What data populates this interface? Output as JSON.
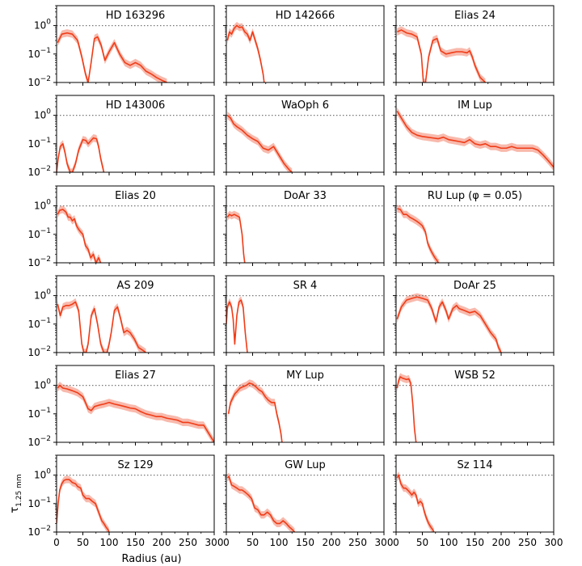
{
  "chart_data": {
    "type": "line",
    "layout": "grid-6x3",
    "xlabel": "Radius (au)",
    "ylabel": "τ_1.25 mm",
    "ylabel_main": "τ",
    "ylabel_sub": "1.25 mm",
    "xlim": [
      0,
      300
    ],
    "ylim": [
      0.01,
      5
    ],
    "yscale": "log",
    "xticks": [
      0,
      50,
      100,
      150,
      200,
      250,
      300
    ],
    "yticks": [
      {
        "value": 0.01,
        "base": "10",
        "exp": "−2"
      },
      {
        "value": 0.1,
        "base": "10",
        "exp": "−1"
      },
      {
        "value": 1,
        "base": "10",
        "exp": "0"
      }
    ],
    "reference_line": {
      "y": 1.0,
      "style": "dotted",
      "color": "#777777"
    },
    "line_color": "#f03c17",
    "band_color": "#f5a190",
    "panels": [
      {
        "title": "HD 163296",
        "x": [
          2,
          10,
          20,
          30,
          40,
          48,
          55,
          60,
          65,
          72,
          78,
          85,
          92,
          100,
          110,
          120,
          130,
          140,
          150,
          160,
          170,
          180,
          190,
          200,
          210
        ],
        "y": [
          0.25,
          0.5,
          0.55,
          0.5,
          0.3,
          0.08,
          0.02,
          0.01,
          0.04,
          0.35,
          0.4,
          0.2,
          0.06,
          0.12,
          0.25,
          0.1,
          0.05,
          0.04,
          0.05,
          0.04,
          0.025,
          0.02,
          0.015,
          0.012,
          0.01
        ]
      },
      {
        "title": "HD 142666",
        "x": [
          2,
          6,
          10,
          15,
          20,
          25,
          30,
          35,
          40,
          45,
          50,
          55,
          60,
          65,
          70,
          72
        ],
        "y": [
          0.3,
          0.6,
          0.5,
          0.8,
          1.0,
          0.85,
          0.9,
          0.6,
          0.5,
          0.3,
          0.6,
          0.3,
          0.15,
          0.06,
          0.02,
          0.01
        ]
      },
      {
        "title": "Elias 24",
        "x": [
          2,
          10,
          20,
          30,
          40,
          48,
          52,
          56,
          62,
          70,
          78,
          85,
          95,
          105,
          115,
          125,
          135,
          140,
          145,
          150,
          160,
          170
        ],
        "y": [
          0.6,
          0.7,
          0.55,
          0.5,
          0.4,
          0.1,
          0.01,
          0.01,
          0.08,
          0.3,
          0.35,
          0.13,
          0.1,
          0.11,
          0.12,
          0.12,
          0.11,
          0.13,
          0.08,
          0.04,
          0.015,
          0.01
        ]
      },
      {
        "title": "HD 143006",
        "x": [
          0,
          3,
          7,
          12,
          16,
          20,
          26,
          30,
          36,
          42,
          50,
          56,
          60,
          64,
          70,
          76,
          80,
          84,
          90
        ],
        "y": [
          0.01,
          0.03,
          0.08,
          0.1,
          0.05,
          0.02,
          0.01,
          0.01,
          0.02,
          0.06,
          0.14,
          0.13,
          0.1,
          0.12,
          0.16,
          0.15,
          0.08,
          0.03,
          0.01
        ]
      },
      {
        "title": "WaOph 6",
        "x": [
          2,
          8,
          14,
          20,
          30,
          40,
          50,
          60,
          70,
          80,
          90,
          100,
          110,
          120,
          125
        ],
        "y": [
          1.0,
          0.8,
          0.5,
          0.4,
          0.3,
          0.2,
          0.15,
          0.12,
          0.07,
          0.06,
          0.08,
          0.04,
          0.02,
          0.012,
          0.01
        ]
      },
      {
        "title": "IM Lup",
        "x": [
          2,
          10,
          20,
          30,
          40,
          50,
          60,
          70,
          80,
          90,
          100,
          110,
          120,
          130,
          140,
          150,
          160,
          170,
          180,
          190,
          200,
          210,
          220,
          230,
          240,
          250,
          260,
          270,
          280,
          290,
          300
        ],
        "y": [
          1.4,
          0.8,
          0.4,
          0.25,
          0.2,
          0.18,
          0.17,
          0.16,
          0.15,
          0.17,
          0.14,
          0.13,
          0.12,
          0.11,
          0.14,
          0.1,
          0.09,
          0.1,
          0.08,
          0.08,
          0.07,
          0.07,
          0.08,
          0.07,
          0.07,
          0.07,
          0.07,
          0.06,
          0.04,
          0.025,
          0.015
        ]
      },
      {
        "title": "Elias 20",
        "x": [
          2,
          6,
          12,
          18,
          22,
          26,
          30,
          34,
          38,
          42,
          46,
          50,
          55,
          60,
          65,
          70,
          75,
          80,
          84
        ],
        "y": [
          0.5,
          0.7,
          0.75,
          0.6,
          0.4,
          0.4,
          0.3,
          0.35,
          0.2,
          0.15,
          0.12,
          0.1,
          0.04,
          0.03,
          0.015,
          0.02,
          0.01,
          0.015,
          0.01
        ]
      },
      {
        "title": "DoAr 33",
        "x": [
          2,
          6,
          10,
          15,
          20,
          25,
          30,
          33,
          35
        ],
        "y": [
          0.4,
          0.5,
          0.45,
          0.5,
          0.45,
          0.4,
          0.1,
          0.02,
          0.01
        ]
      },
      {
        "title": "RU Lup (φ = 0.05)",
        "x": [
          2,
          8,
          14,
          20,
          26,
          32,
          38,
          44,
          50,
          56,
          60,
          65,
          70,
          74,
          78,
          80,
          82
        ],
        "y": [
          0.8,
          0.75,
          0.5,
          0.5,
          0.4,
          0.35,
          0.3,
          0.25,
          0.2,
          0.12,
          0.05,
          0.03,
          0.02,
          0.015,
          0.012,
          0.01,
          0.01
        ]
      },
      {
        "title": "AS 209",
        "x": [
          2,
          7,
          12,
          18,
          24,
          30,
          36,
          42,
          48,
          52,
          56,
          60,
          66,
          72,
          78,
          84,
          90,
          96,
          100,
          104,
          110,
          116,
          122,
          128,
          134,
          140,
          148,
          156,
          164,
          170
        ],
        "y": [
          0.5,
          0.2,
          0.4,
          0.45,
          0.45,
          0.5,
          0.6,
          0.3,
          0.02,
          0.01,
          0.01,
          0.02,
          0.2,
          0.35,
          0.1,
          0.02,
          0.01,
          0.01,
          0.02,
          0.05,
          0.3,
          0.4,
          0.15,
          0.05,
          0.06,
          0.05,
          0.03,
          0.015,
          0.012,
          0.01
        ]
      },
      {
        "title": "SR 4",
        "x": [
          0,
          2,
          6,
          10,
          13,
          16,
          20,
          24,
          28,
          32,
          36,
          40
        ],
        "y": [
          0.1,
          0.4,
          0.6,
          0.4,
          0.15,
          0.02,
          0.2,
          0.6,
          0.7,
          0.4,
          0.05,
          0.01
        ]
      },
      {
        "title": "DoAr 25",
        "x": [
          2,
          10,
          20,
          30,
          40,
          50,
          60,
          68,
          72,
          76,
          82,
          88,
          95,
          100,
          108,
          115,
          120,
          130,
          140,
          150,
          160,
          170,
          180,
          190,
          195,
          200
        ],
        "y": [
          0.15,
          0.4,
          0.7,
          0.8,
          0.9,
          0.8,
          0.7,
          0.35,
          0.2,
          0.12,
          0.4,
          0.6,
          0.3,
          0.15,
          0.35,
          0.45,
          0.35,
          0.3,
          0.25,
          0.28,
          0.2,
          0.1,
          0.05,
          0.03,
          0.015,
          0.01
        ]
      },
      {
        "title": "Elias 27",
        "x": [
          2,
          6,
          12,
          20,
          30,
          40,
          50,
          55,
          60,
          66,
          72,
          80,
          90,
          100,
          110,
          120,
          130,
          140,
          150,
          160,
          170,
          180,
          190,
          200,
          210,
          220,
          230,
          240,
          250,
          260,
          270,
          280,
          290,
          300
        ],
        "y": [
          0.8,
          1.0,
          0.8,
          0.75,
          0.65,
          0.55,
          0.4,
          0.25,
          0.15,
          0.13,
          0.18,
          0.2,
          0.22,
          0.25,
          0.22,
          0.2,
          0.18,
          0.16,
          0.15,
          0.12,
          0.1,
          0.09,
          0.08,
          0.08,
          0.07,
          0.065,
          0.06,
          0.05,
          0.05,
          0.045,
          0.04,
          0.04,
          0.02,
          0.01
        ]
      },
      {
        "title": "MY Lup",
        "x": [
          4,
          8,
          12,
          16,
          20,
          26,
          32,
          38,
          44,
          50,
          56,
          62,
          68,
          74,
          80,
          86,
          92,
          96,
          100,
          104,
          106
        ],
        "y": [
          0.1,
          0.25,
          0.35,
          0.5,
          0.6,
          0.8,
          0.9,
          1.0,
          1.2,
          1.1,
          0.9,
          0.7,
          0.6,
          0.4,
          0.3,
          0.25,
          0.25,
          0.1,
          0.05,
          0.02,
          0.01
        ]
      },
      {
        "title": "WSB 52",
        "x": [
          2,
          5,
          8,
          12,
          16,
          20,
          24,
          28,
          32,
          35,
          38
        ],
        "y": [
          0.8,
          1.5,
          2.0,
          1.8,
          1.7,
          1.6,
          1.7,
          1.2,
          0.2,
          0.03,
          0.01
        ]
      },
      {
        "title": "Sz 129",
        "x": [
          0,
          3,
          6,
          10,
          14,
          18,
          24,
          30,
          36,
          40,
          46,
          50,
          56,
          62,
          68,
          74,
          80,
          86,
          90,
          94,
          98,
          100
        ],
        "y": [
          0.02,
          0.1,
          0.3,
          0.5,
          0.65,
          0.7,
          0.7,
          0.55,
          0.5,
          0.4,
          0.35,
          0.2,
          0.15,
          0.15,
          0.12,
          0.1,
          0.05,
          0.025,
          0.02,
          0.015,
          0.012,
          0.01
        ]
      },
      {
        "title": "GW Lup",
        "x": [
          2,
          5,
          10,
          15,
          20,
          25,
          30,
          36,
          42,
          48,
          54,
          60,
          66,
          72,
          78,
          84,
          90,
          96,
          102,
          108,
          114,
          120,
          126,
          130
        ],
        "y": [
          0.8,
          0.9,
          0.45,
          0.4,
          0.35,
          0.3,
          0.3,
          0.25,
          0.2,
          0.15,
          0.07,
          0.06,
          0.04,
          0.04,
          0.05,
          0.04,
          0.025,
          0.02,
          0.02,
          0.025,
          0.02,
          0.015,
          0.012,
          0.01
        ]
      },
      {
        "title": "Sz 114",
        "x": [
          2,
          5,
          9,
          14,
          18,
          22,
          26,
          30,
          34,
          38,
          42,
          46,
          50,
          54,
          58,
          62,
          66,
          70,
          72
        ],
        "y": [
          0.8,
          1.0,
          0.5,
          0.35,
          0.35,
          0.3,
          0.25,
          0.2,
          0.25,
          0.2,
          0.1,
          0.12,
          0.1,
          0.05,
          0.03,
          0.02,
          0.015,
          0.012,
          0.01
        ]
      }
    ]
  }
}
